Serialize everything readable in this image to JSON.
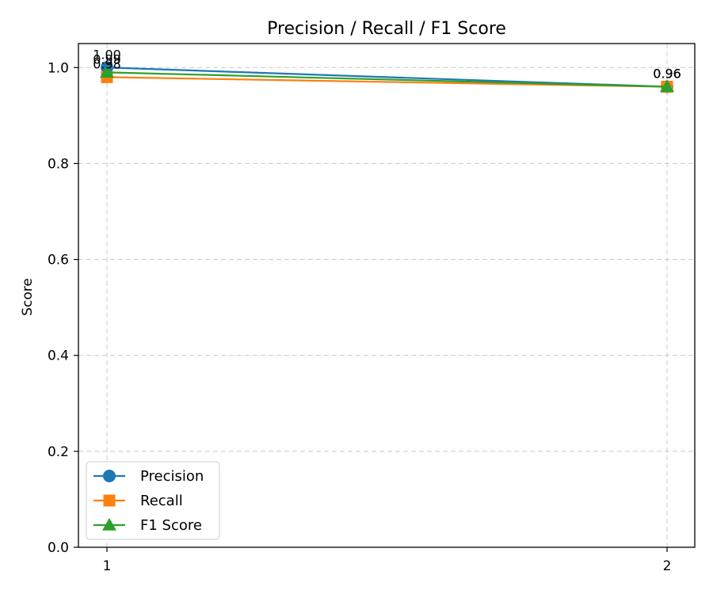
{
  "chart_data": {
    "type": "line",
    "title": "Precision / Recall / F1 Score",
    "xlabel": "",
    "ylabel": "Score",
    "x": [
      1,
      2
    ],
    "x_tick_labels": [
      "1",
      "2"
    ],
    "ylim": [
      0.0,
      1.05
    ],
    "y_ticks": [
      0.0,
      0.2,
      0.4,
      0.6,
      0.8,
      1.0
    ],
    "y_tick_labels": [
      "0.0",
      "0.2",
      "0.4",
      "0.6",
      "0.8",
      "1.0"
    ],
    "grid": true,
    "legend_position": "lower-left",
    "series": [
      {
        "name": "Precision",
        "values": [
          1.0,
          0.96
        ],
        "labels": [
          "1.00",
          "0.96"
        ],
        "color": "#1f77b4",
        "marker": "circle"
      },
      {
        "name": "Recall",
        "values": [
          0.98,
          0.96
        ],
        "labels": [
          "0.98",
          "0.96"
        ],
        "color": "#ff7f0e",
        "marker": "square"
      },
      {
        "name": "F1 Score",
        "values": [
          0.99,
          0.96
        ],
        "labels": [
          "0.99",
          "0.96"
        ],
        "color": "#2ca02c",
        "marker": "triangle"
      }
    ]
  }
}
